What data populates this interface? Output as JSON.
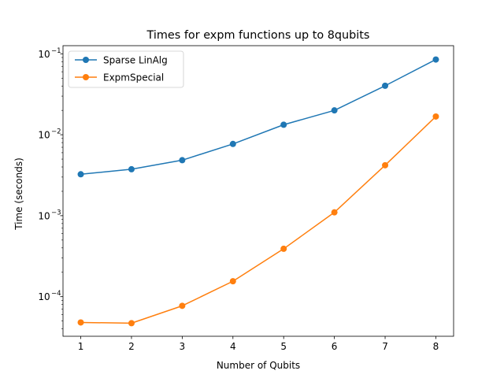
{
  "chart_data": {
    "type": "line",
    "title": "Times for expm functions up to 8qubits",
    "xlabel": "Number of Qubits",
    "ylabel": "Time (seconds)",
    "yscale": "log",
    "xlim": [
      0.65,
      8.35
    ],
    "ylim": [
      3.24e-05,
      0.126
    ],
    "x": [
      1,
      2,
      3,
      4,
      5,
      6,
      7,
      8
    ],
    "x_ticks": [
      "1",
      "2",
      "3",
      "4",
      "5",
      "6",
      "7",
      "8"
    ],
    "y_ticks": [
      {
        "value": 0.0001,
        "base": "10",
        "exp": "−4"
      },
      {
        "value": 0.001,
        "base": "10",
        "exp": "−3"
      },
      {
        "value": 0.01,
        "base": "10",
        "exp": "−2"
      },
      {
        "value": 0.1,
        "base": "10",
        "exp": "−1"
      }
    ],
    "grid": false,
    "legend_position": "upper-left",
    "series": [
      {
        "name": "Sparse LinAlg",
        "color": "#1f77b4",
        "marker": "circle",
        "values": [
          0.00325,
          0.00375,
          0.00485,
          0.0077,
          0.0133,
          0.02,
          0.0403,
          0.085
        ]
      },
      {
        "name": "ExpmSpecial",
        "color": "#ff7f0e",
        "marker": "circle",
        "values": [
          4.8e-05,
          4.7e-05,
          7.7e-05,
          0.000155,
          0.00039,
          0.0011,
          0.0042,
          0.0168
        ]
      }
    ]
  }
}
